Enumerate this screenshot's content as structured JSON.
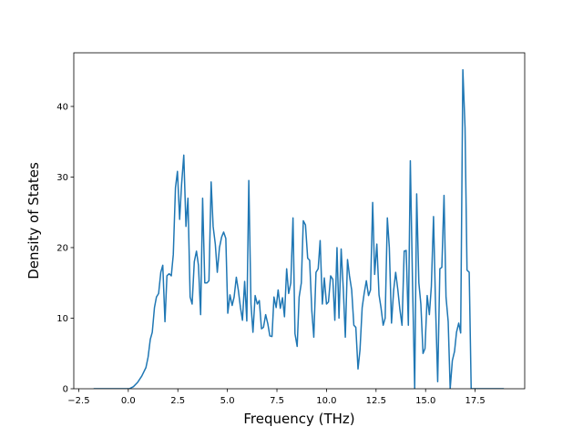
{
  "chart_data": {
    "type": "line",
    "xlabel": "Frequency (THz)",
    "ylabel": "Density of States",
    "x": [
      -1.75,
      0.05,
      0.26,
      0.47,
      0.68,
      0.89,
      1.0,
      1.11,
      1.21,
      1.32,
      1.42,
      1.53,
      1.64,
      1.74,
      1.85,
      1.95,
      2.06,
      2.17,
      2.27,
      2.38,
      2.48,
      2.59,
      2.69,
      2.8,
      2.91,
      3.01,
      3.12,
      3.22,
      3.33,
      3.44,
      3.54,
      3.65,
      3.75,
      3.86,
      3.97,
      4.07,
      4.18,
      4.28,
      4.39,
      4.49,
      4.6,
      4.71,
      4.81,
      4.92,
      5.02,
      5.13,
      5.24,
      5.34,
      5.45,
      5.55,
      5.66,
      5.76,
      5.87,
      5.98,
      6.08,
      6.19,
      6.29,
      6.4,
      6.51,
      6.61,
      6.72,
      6.82,
      6.93,
      7.04,
      7.14,
      7.25,
      7.35,
      7.46,
      7.56,
      7.67,
      7.78,
      7.88,
      7.99,
      8.09,
      8.2,
      8.31,
      8.41,
      8.52,
      8.62,
      8.73,
      8.83,
      8.94,
      9.05,
      9.15,
      9.26,
      9.36,
      9.47,
      9.58,
      9.68,
      9.79,
      9.89,
      10.0,
      10.1,
      10.21,
      10.32,
      10.42,
      10.53,
      10.63,
      10.74,
      10.85,
      10.95,
      11.06,
      11.16,
      11.27,
      11.38,
      11.48,
      11.59,
      11.69,
      11.8,
      11.9,
      12.01,
      12.12,
      12.22,
      12.33,
      12.43,
      12.54,
      12.65,
      12.75,
      12.86,
      12.96,
      13.07,
      13.17,
      13.28,
      13.39,
      13.49,
      13.6,
      13.7,
      13.81,
      13.92,
      14.02,
      14.13,
      14.23,
      14.34,
      14.45,
      14.55,
      14.66,
      14.76,
      14.87,
      14.97,
      15.08,
      15.19,
      15.29,
      15.4,
      15.5,
      15.61,
      15.72,
      15.82,
      15.93,
      16.03,
      16.14,
      16.24,
      16.35,
      16.46,
      16.56,
      16.67,
      16.77,
      16.88,
      16.99,
      17.09,
      17.2,
      17.3,
      17.41,
      18.95
    ],
    "series": [
      {
        "color": "#1f77b4",
        "values": [
          0,
          0,
          0.3,
          0.9,
          1.8,
          3,
          4.5,
          7,
          8,
          11.5,
          13,
          13.5,
          16.5,
          17.5,
          9.5,
          16,
          16.3,
          16,
          19,
          28.5,
          30.8,
          24,
          29,
          33.1,
          23,
          27,
          13,
          12,
          18,
          19.5,
          17.5,
          10.5,
          27,
          15,
          15,
          15.3,
          29.3,
          23,
          20.5,
          16.5,
          20,
          21.5,
          22.2,
          21.3,
          10.7,
          13.3,
          11.8,
          13,
          15.8,
          14,
          11.5,
          9.7,
          15.2,
          9.6,
          29.5,
          12,
          8,
          13.2,
          12,
          12.5,
          8.5,
          8.7,
          10.5,
          9.2,
          7.5,
          7.4,
          13,
          11.5,
          14,
          11.4,
          12.9,
          10.2,
          17,
          13.5,
          15,
          24.2,
          7.8,
          6,
          13,
          15,
          23.8,
          23.2,
          18.5,
          18.2,
          11,
          7.3,
          16.5,
          17,
          21,
          12,
          15.7,
          12,
          12.3,
          16,
          15.5,
          9.7,
          20,
          10,
          19.8,
          14,
          7.3,
          18.3,
          16,
          14,
          9,
          8.7,
          2.8,
          5.5,
          11.5,
          13.5,
          15.3,
          13.2,
          14,
          26.4,
          16.2,
          20.5,
          13.3,
          11.5,
          9,
          10,
          24.2,
          20,
          9.3,
          14,
          16.5,
          14,
          11.3,
          9,
          19.5,
          19.6,
          9,
          32.3,
          15,
          0,
          27.6,
          15,
          12,
          5,
          5.7,
          13.2,
          10.5,
          14.5,
          24.4,
          12,
          1,
          17,
          17.2,
          27.4,
          13,
          9.5,
          0,
          4,
          5.3,
          8,
          9.3,
          7.9,
          45.2,
          37,
          16.8,
          16.5,
          0,
          0,
          0
        ]
      }
    ],
    "xlim": [
      -2.75,
      20.0
    ],
    "ylim": [
      0,
      47.6
    ],
    "xticks": [
      {
        "value": -2.5,
        "label": "−2.5"
      },
      {
        "value": 0,
        "label": "0.0"
      },
      2.5,
      {
        "value": 5,
        "label": "5.0"
      },
      7.5,
      {
        "value": 10,
        "label": "10.0"
      },
      12.5,
      {
        "value": 15,
        "label": "15.0"
      },
      17.5
    ],
    "yticks": [
      0,
      10,
      20,
      30,
      40
    ],
    "grid": false
  }
}
